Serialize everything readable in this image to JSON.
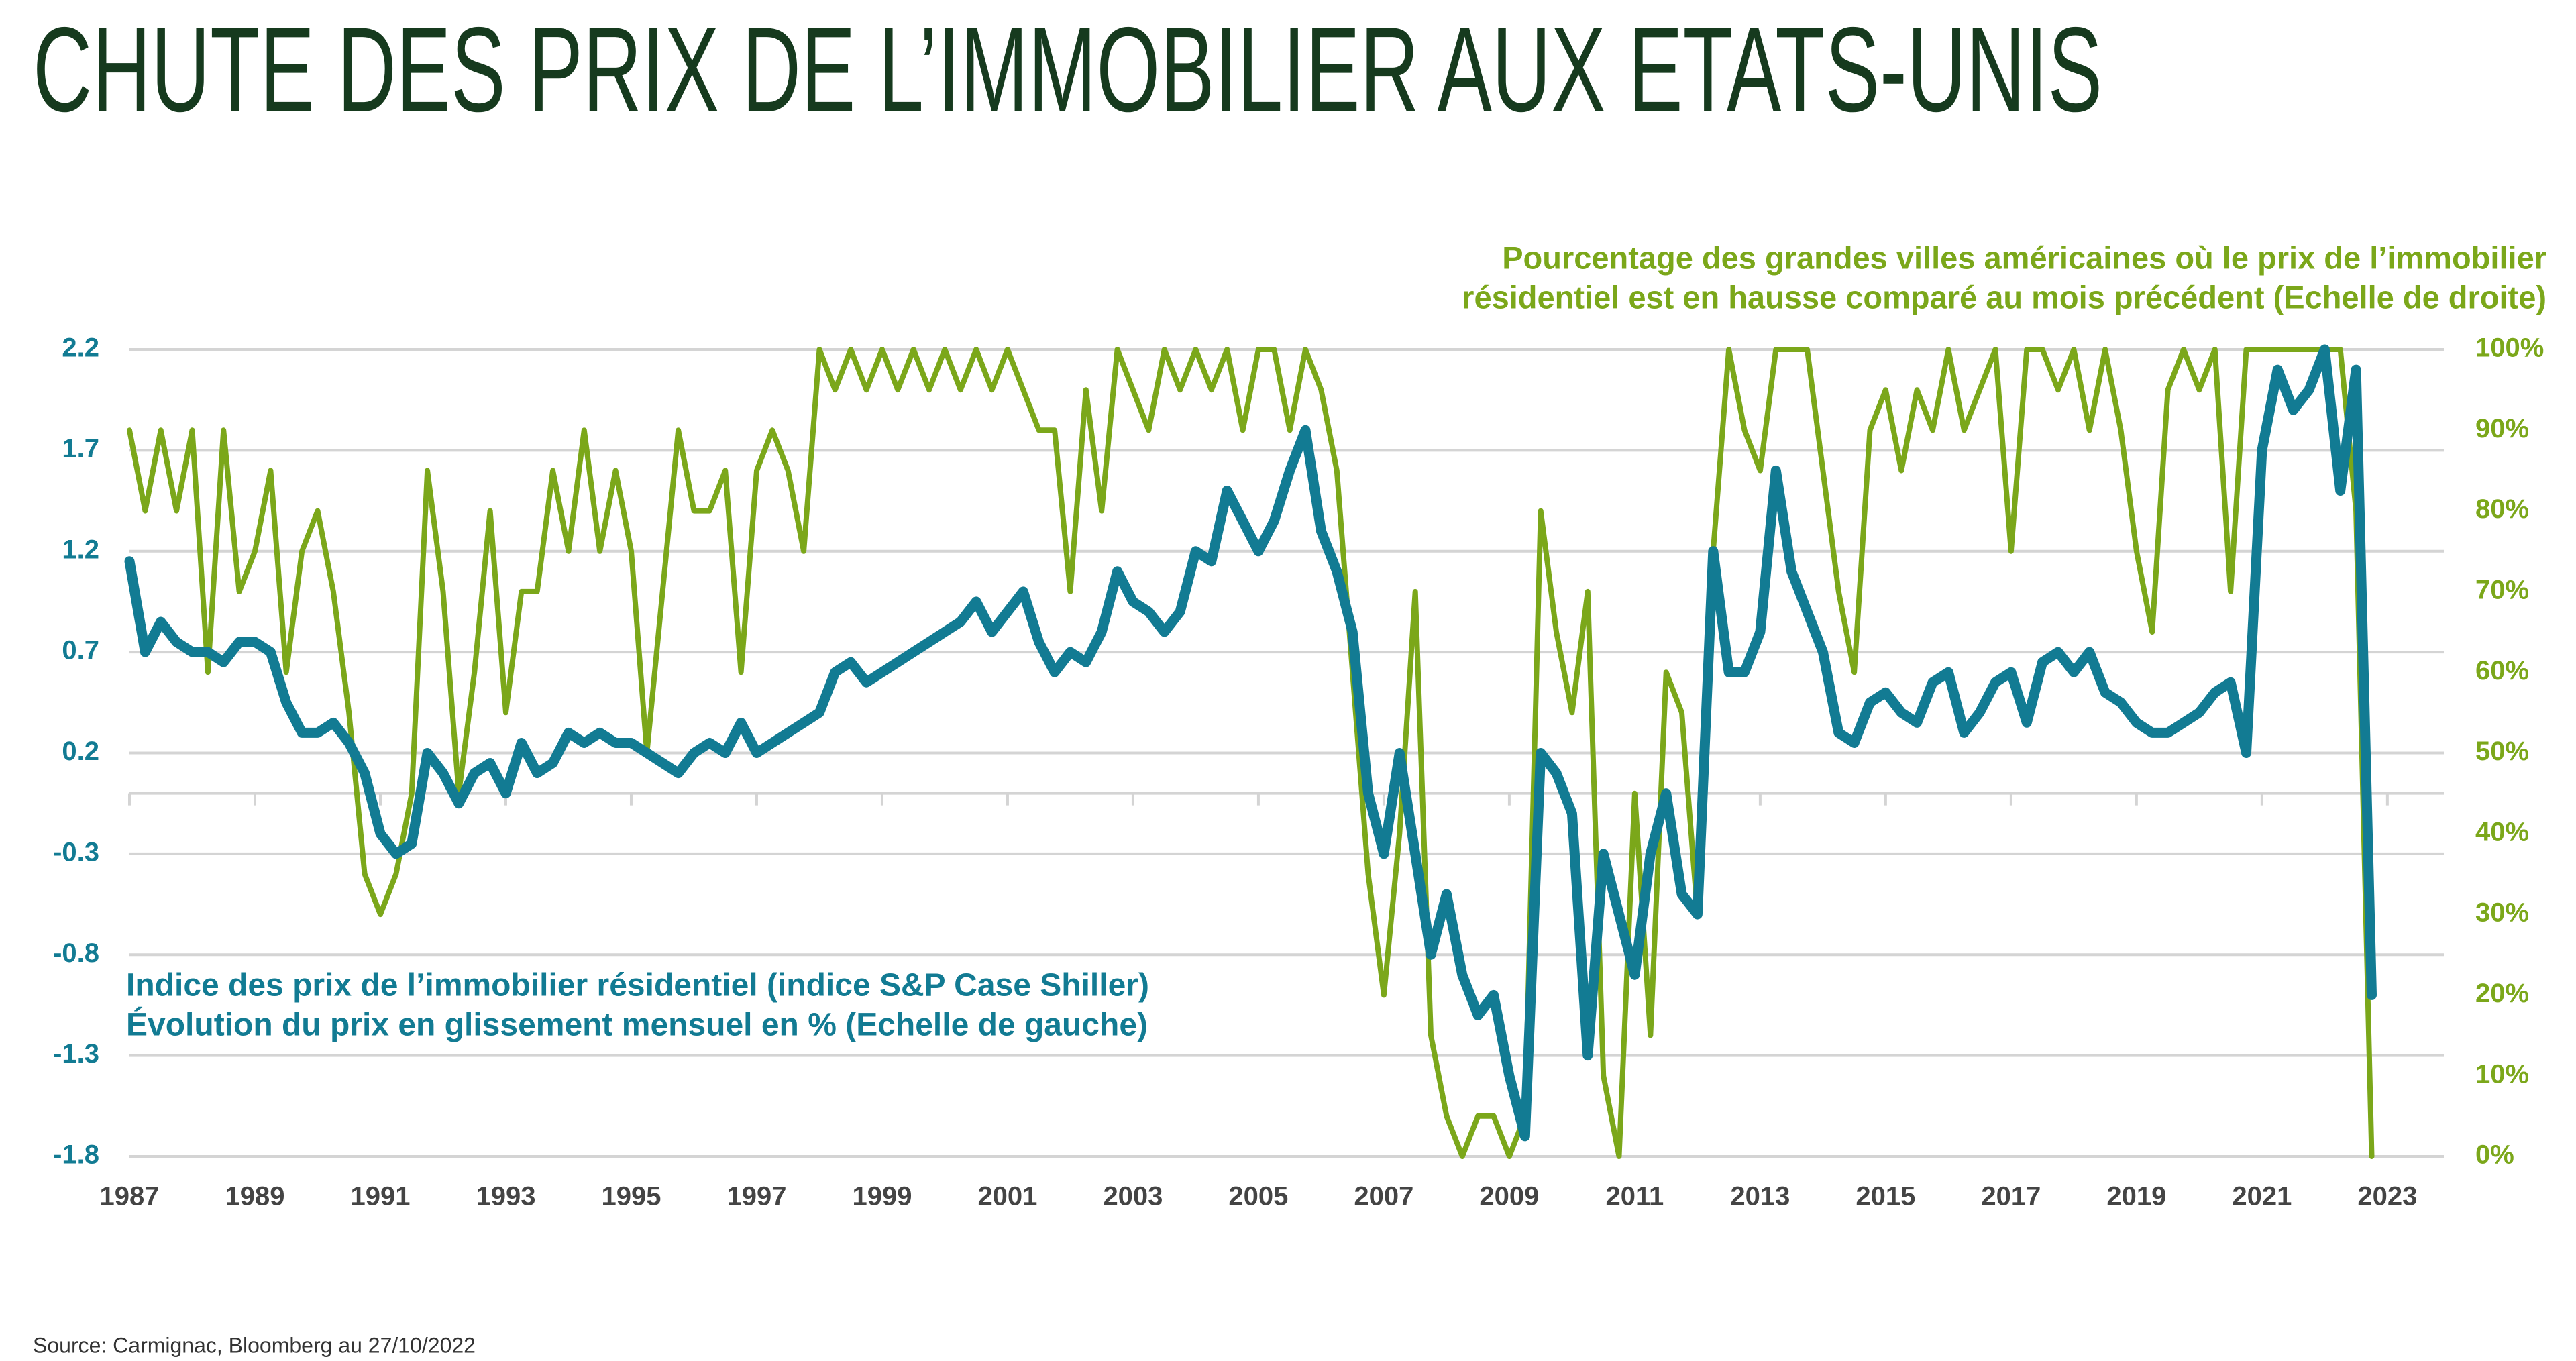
{
  "chart_data": {
    "type": "line",
    "title": "CHUTE DES PRIX DE L’IMMOBILIER AUX ETATS-UNIS",
    "left_label": [
      "Indice des prix de l’immobilier résidentiel (indice S&P Case Shiller)",
      "Évolution du prix en glissement mensuel en % (Echelle de gauche)"
    ],
    "right_label": [
      "Pourcentage des grandes villes américaines où le prix de l’immobilier",
      "résidentiel est en hausse comparé au mois précédent (Echelle de droite)"
    ],
    "source": "Source: Carmignac, Bloomberg au 27/10/2022",
    "grid": true,
    "xlim": [
      1987,
      2023.9
    ],
    "xticks": [
      1987,
      1989,
      1991,
      1993,
      1995,
      1997,
      1999,
      2001,
      2003,
      2005,
      2007,
      2009,
      2011,
      2013,
      2015,
      2017,
      2019,
      2021,
      2023
    ],
    "ylim": [
      -1.8,
      2.2
    ],
    "yticks": [
      -1.8,
      -1.3,
      -0.8,
      -0.3,
      0.2,
      0.7,
      1.2,
      1.7,
      2.2
    ],
    "y2lim": [
      0,
      100
    ],
    "y2ticks": [
      {
        "value": 0,
        "label": "0%"
      },
      {
        "value": 10,
        "label": "10%"
      },
      {
        "value": 20,
        "label": "20%"
      },
      {
        "value": 30,
        "label": "30%"
      },
      {
        "value": 40,
        "label": "40%"
      },
      {
        "value": 50,
        "label": "50%"
      },
      {
        "value": 60,
        "label": "60%"
      },
      {
        "value": 70,
        "label": "70%"
      },
      {
        "value": 80,
        "label": "80%"
      },
      {
        "value": 90,
        "label": "90%"
      },
      {
        "value": 100,
        "label": "100%"
      }
    ],
    "x": [
      1987,
      1987.25,
      1987.5,
      1987.75,
      1988,
      1988.25,
      1988.5,
      1988.75,
      1989,
      1989.25,
      1989.5,
      1989.75,
      1990,
      1990.25,
      1990.5,
      1990.75,
      1991,
      1991.25,
      1991.5,
      1991.75,
      1992,
      1992.25,
      1992.5,
      1992.75,
      1993,
      1993.25,
      1993.5,
      1993.75,
      1994,
      1994.25,
      1994.5,
      1994.75,
      1995,
      1995.25,
      1995.5,
      1995.75,
      1996,
      1996.25,
      1996.5,
      1996.75,
      1997,
      1997.25,
      1997.5,
      1997.75,
      1998,
      1998.25,
      1998.5,
      1998.75,
      1999,
      1999.25,
      1999.5,
      1999.75,
      2000,
      2000.25,
      2000.5,
      2000.75,
      2001,
      2001.25,
      2001.5,
      2001.75,
      2002,
      2002.25,
      2002.5,
      2002.75,
      2003,
      2003.25,
      2003.5,
      2003.75,
      2004,
      2004.25,
      2004.5,
      2004.75,
      2005,
      2005.25,
      2005.5,
      2005.75,
      2006,
      2006.25,
      2006.5,
      2006.75,
      2007,
      2007.25,
      2007.5,
      2007.75,
      2008,
      2008.25,
      2008.5,
      2008.75,
      2009,
      2009.25,
      2009.5,
      2009.75,
      2010,
      2010.25,
      2010.5,
      2010.75,
      2011,
      2011.25,
      2011.5,
      2011.75,
      2012,
      2012.25,
      2012.5,
      2012.75,
      2013,
      2013.25,
      2013.5,
      2013.75,
      2014,
      2014.25,
      2014.5,
      2014.75,
      2015,
      2015.25,
      2015.5,
      2015.75,
      2016,
      2016.25,
      2016.5,
      2016.75,
      2017,
      2017.25,
      2017.5,
      2017.75,
      2018,
      2018.25,
      2018.5,
      2018.75,
      2019,
      2019.25,
      2019.5,
      2019.75,
      2020,
      2020.25,
      2020.5,
      2020.75,
      2021,
      2021.25,
      2021.5,
      2021.75,
      2022,
      2022.25,
      2022.5,
      2022.75
    ],
    "series": [
      {
        "name": "Indice des prix de l’immobilier résidentiel",
        "color": "#127b93",
        "axis": "y",
        "values": [
          1.15,
          0.7,
          0.85,
          0.75,
          0.7,
          0.7,
          0.65,
          0.75,
          0.75,
          0.7,
          0.45,
          0.3,
          0.3,
          0.35,
          0.25,
          0.1,
          -0.2,
          -0.3,
          -0.25,
          0.2,
          0.1,
          -0.05,
          0.1,
          0.15,
          0.0,
          0.25,
          0.1,
          0.15,
          0.3,
          0.25,
          0.3,
          0.25,
          0.25,
          0.2,
          0.15,
          0.1,
          0.2,
          0.25,
          0.2,
          0.35,
          0.2,
          0.25,
          0.3,
          0.35,
          0.4,
          0.6,
          0.65,
          0.55,
          0.6,
          0.65,
          0.7,
          0.75,
          0.8,
          0.85,
          0.95,
          0.8,
          0.9,
          1.0,
          0.75,
          0.6,
          0.7,
          0.65,
          0.8,
          1.1,
          0.95,
          0.9,
          0.8,
          0.9,
          1.2,
          1.15,
          1.5,
          1.35,
          1.2,
          1.35,
          1.6,
          1.8,
          1.3,
          1.1,
          0.8,
          0.0,
          -0.3,
          0.2,
          -0.3,
          -0.8,
          -0.5,
          -0.9,
          -1.1,
          -1.0,
          -1.4,
          -1.7,
          0.2,
          0.1,
          -0.1,
          -1.3,
          -0.3,
          -0.6,
          -0.9,
          -0.3,
          0.0,
          -0.5,
          -0.6,
          1.2,
          0.6,
          0.6,
          0.8,
          1.6,
          1.1,
          0.9,
          0.7,
          0.3,
          0.25,
          0.45,
          0.5,
          0.4,
          0.35,
          0.55,
          0.6,
          0.3,
          0.4,
          0.55,
          0.6,
          0.35,
          0.65,
          0.7,
          0.6,
          0.7,
          0.5,
          0.45,
          0.35,
          0.3,
          0.3,
          0.35,
          0.4,
          0.5,
          0.55,
          0.2,
          1.7,
          2.1,
          1.9,
          2.0,
          2.2,
          1.5,
          2.1,
          -1.0
        ]
      },
      {
        "name": "Pourcentage des grandes villes en hausse",
        "color": "#7ba71a",
        "axis": "y2",
        "values": [
          90,
          80,
          90,
          80,
          90,
          60,
          90,
          70,
          75,
          85,
          60,
          75,
          80,
          70,
          55,
          35,
          30,
          35,
          45,
          85,
          70,
          45,
          60,
          80,
          55,
          70,
          70,
          85,
          75,
          90,
          75,
          85,
          75,
          50,
          70,
          90,
          80,
          80,
          85,
          60,
          85,
          90,
          85,
          75,
          100,
          95,
          100,
          95,
          100,
          95,
          100,
          95,
          100,
          95,
          100,
          95,
          100,
          95,
          90,
          90,
          70,
          95,
          80,
          100,
          95,
          90,
          100,
          95,
          100,
          95,
          100,
          90,
          100,
          100,
          90,
          100,
          95,
          85,
          60,
          35,
          20,
          40,
          70,
          15,
          5,
          0,
          5,
          5,
          0,
          5,
          80,
          65,
          55,
          70,
          10,
          0,
          45,
          15,
          60,
          55,
          30,
          75,
          100,
          90,
          85,
          100,
          100,
          100,
          85,
          70,
          60,
          90,
          95,
          85,
          95,
          90,
          100,
          90,
          95,
          100,
          75,
          100,
          100,
          95,
          100,
          90,
          100,
          90,
          75,
          65,
          95,
          100,
          95,
          100,
          70,
          100,
          100,
          100,
          100,
          100,
          100,
          100,
          80,
          0
        ]
      }
    ]
  }
}
